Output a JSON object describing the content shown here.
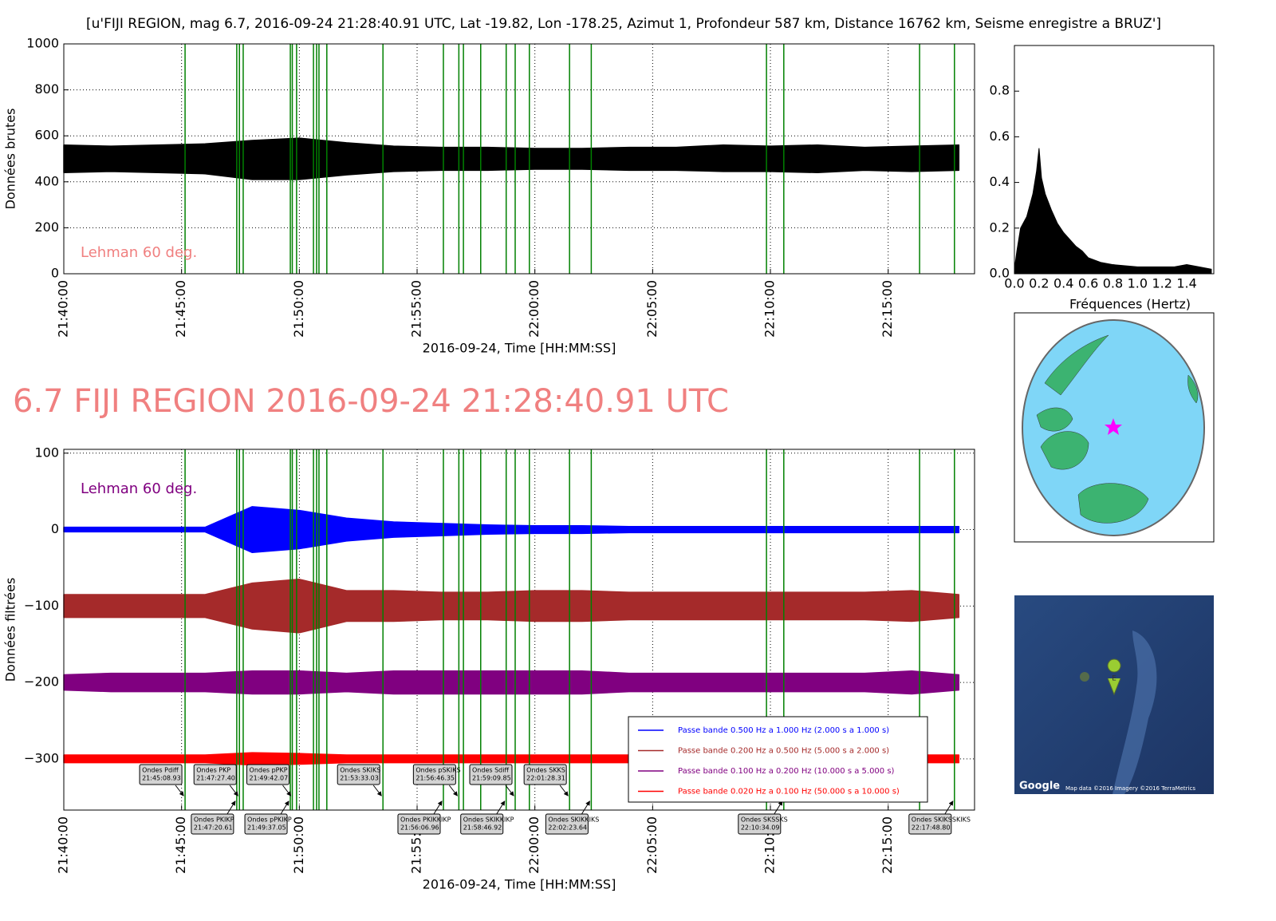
{
  "chart_data": [
    {
      "type": "band",
      "title": "[u'FIJI REGION, mag 6.7, 2016-09-24 21:28:40.91 UTC, Lat -19.82, Lon -178.25, Azimut   1, Profondeur 587 km, Distance 16762 km, Seisme enregistre a BRUZ']",
      "ylabel": "Données brutes",
      "xlabel": "2016-09-24, Time [HH:MM:SS]",
      "annotation": {
        "text": "Lehman 60 deg.",
        "color": "#f08080"
      },
      "x": [
        "21:40:00",
        "21:42:00",
        "21:44:00",
        "21:46:00",
        "21:48:00",
        "21:50:00",
        "21:52:00",
        "21:54:00",
        "21:56:00",
        "21:58:00",
        "22:00:00",
        "22:02:00",
        "22:04:00",
        "22:06:00",
        "22:08:00",
        "22:10:00",
        "22:12:00",
        "22:14:00",
        "22:16:00",
        "22:18:00"
      ],
      "series": [
        {
          "color": "#000000",
          "upper": [
            560,
            555,
            560,
            565,
            580,
            590,
            570,
            555,
            550,
            550,
            545,
            545,
            550,
            550,
            560,
            555,
            560,
            550,
            555,
            560
          ],
          "lower": [
            440,
            445,
            440,
            435,
            410,
            410,
            430,
            445,
            450,
            450,
            455,
            455,
            450,
            450,
            445,
            445,
            440,
            450,
            445,
            450
          ]
        }
      ],
      "xlim": [
        "21:40:00",
        "22:18:40"
      ],
      "xticks": [
        "21:40:00",
        "21:45:00",
        "21:50:00",
        "21:55:00",
        "22:00:00",
        "22:05:00",
        "22:10:00",
        "22:15:00"
      ],
      "ylim": [
        0,
        1000
      ],
      "yticks": [
        0,
        200,
        400,
        600,
        800,
        1000
      ],
      "grid": true
    },
    {
      "type": "area",
      "xlabel": "Fréquences (Hertz)",
      "x": [
        0,
        0.02,
        0.05,
        0.1,
        0.15,
        0.18,
        0.2,
        0.22,
        0.25,
        0.3,
        0.35,
        0.4,
        0.45,
        0.5,
        0.55,
        0.6,
        0.7,
        0.8,
        0.9,
        1.0,
        1.1,
        1.2,
        1.3,
        1.4,
        1.5,
        1.6
      ],
      "values": [
        0.02,
        0.1,
        0.2,
        0.25,
        0.35,
        0.45,
        0.55,
        0.42,
        0.35,
        0.28,
        0.22,
        0.18,
        0.15,
        0.12,
        0.1,
        0.07,
        0.05,
        0.04,
        0.035,
        0.03,
        0.03,
        0.03,
        0.03,
        0.04,
        0.03,
        0.02
      ],
      "color": "#000000",
      "xlim": [
        0,
        1.62
      ],
      "ylim": [
        0,
        1
      ],
      "xticks": [
        {
          "value": 0,
          "label": "0.0"
        },
        0.2,
        0.4,
        0.6,
        0.8,
        {
          "value": 1,
          "label": "1.0"
        },
        1.2,
        1.4
      ],
      "yticks": [
        {
          "value": 0,
          "label": "0.0"
        },
        0.2,
        0.4,
        0.6,
        0.8
      ],
      "grid": false
    },
    {
      "type": "band",
      "title": "6.7 FIJI REGION 2016-09-24 21:28:40.91 UTC",
      "title_color": "#f08080",
      "ylabel": "Données filtrées",
      "xlabel": "2016-09-24, Time [HH:MM:SS]",
      "annotation": {
        "text": "Lehman 60 deg.",
        "color": "#800080"
      },
      "x": [
        "21:40:00",
        "21:42:00",
        "21:44:00",
        "21:46:00",
        "21:48:00",
        "21:50:00",
        "21:52:00",
        "21:54:00",
        "21:56:00",
        "21:58:00",
        "22:00:00",
        "22:02:00",
        "22:04:00",
        "22:06:00",
        "22:08:00",
        "22:10:00",
        "22:12:00",
        "22:14:00",
        "22:16:00",
        "22:18:00"
      ],
      "series": [
        {
          "name": "Passe bande 0.500 Hz a 1.000 Hz (2.000 s a 1.000 s)",
          "color": "#0000ff",
          "upper": [
            3,
            3,
            3,
            3,
            30,
            25,
            15,
            10,
            8,
            6,
            5,
            5,
            4,
            4,
            4,
            4,
            4,
            4,
            4,
            4
          ],
          "lower": [
            -3,
            -3,
            -3,
            -3,
            -30,
            -25,
            -15,
            -10,
            -8,
            -6,
            -5,
            -5,
            -4,
            -4,
            -4,
            -4,
            -4,
            -4,
            -4,
            -4
          ]
        },
        {
          "name": "Passe bande 0.200 Hz a 0.500 Hz (5.000 s a 2.000 s)",
          "color": "#a52a2a",
          "upper": [
            -85,
            -85,
            -85,
            -85,
            -70,
            -65,
            -80,
            -80,
            -82,
            -82,
            -80,
            -80,
            -82,
            -82,
            -82,
            -82,
            -82,
            -82,
            -80,
            -85
          ],
          "lower": [
            -115,
            -115,
            -115,
            -115,
            -130,
            -135,
            -120,
            -120,
            -118,
            -118,
            -120,
            -120,
            -118,
            -118,
            -118,
            -118,
            -118,
            -118,
            -120,
            -115
          ]
        },
        {
          "name": "Passe bande 0.100 Hz a 0.200 Hz (10.000 s a 5.000 s)",
          "color": "#800080",
          "upper": [
            -190,
            -188,
            -188,
            -188,
            -185,
            -185,
            -188,
            -185,
            -185,
            -185,
            -185,
            -185,
            -188,
            -188,
            -188,
            -188,
            -188,
            -188,
            -185,
            -190
          ],
          "lower": [
            -210,
            -212,
            -212,
            -212,
            -215,
            -215,
            -212,
            -215,
            -215,
            -215,
            -215,
            -215,
            -212,
            -212,
            -212,
            -212,
            -212,
            -212,
            -215,
            -210
          ]
        },
        {
          "name": "Passe bande 0.020 Hz a 0.100 Hz (50.000 s a 10.000 s)",
          "color": "#ff0000",
          "upper": [
            -295,
            -295,
            -295,
            -295,
            -292,
            -293,
            -295,
            -295,
            -295,
            -295,
            -295,
            -295,
            -295,
            -295,
            -295,
            -295,
            -295,
            -295,
            -295,
            -295
          ],
          "lower": [
            -305,
            -305,
            -305,
            -305,
            -308,
            -307,
            -305,
            -305,
            -305,
            -305,
            -305,
            -305,
            -305,
            -305,
            -305,
            -305,
            -305,
            -305,
            -305,
            -305
          ]
        }
      ],
      "xlim": [
        "21:40:00",
        "22:18:40"
      ],
      "xticks": [
        "21:40:00",
        "21:45:00",
        "21:50:00",
        "21:55:00",
        "22:00:00",
        "22:05:00",
        "22:10:00",
        "22:15:00"
      ],
      "ylim": [
        -367,
        105
      ],
      "yticks": [
        100,
        0,
        {
          "value": -100,
          "label": "−100"
        },
        {
          "value": -200,
          "label": "−200"
        },
        {
          "value": -300,
          "label": "−300"
        }
      ],
      "grid": true,
      "legend": "lower right"
    }
  ],
  "arrivals": [
    {
      "name": "Ondes Pdiff",
      "time": "21:45:08.93"
    },
    {
      "name": "Ondes PKIKP",
      "time": "21:47:20.61"
    },
    {
      "name": "Ondes PKP",
      "time": "21:47:27.40"
    },
    {
      "name": "Ondes pPKIKP",
      "time": "21:49:37.05"
    },
    {
      "name": "Ondes pPKP",
      "time": "21:49:42.07"
    },
    {
      "name": "Ondes SKIKS",
      "time": "21:53:33.03"
    },
    {
      "name": "Ondes PKIKKIKP",
      "time": "21:56:06.96"
    },
    {
      "name": "Ondes pSKIKS",
      "time": "21:56:46.35"
    },
    {
      "name": "Ondes SKIKKIKP",
      "time": "21:58:46.92"
    },
    {
      "name": "Ondes Sdiff",
      "time": "21:59:09.85"
    },
    {
      "name": "Ondes SKKS",
      "time": "22:01:28.31"
    },
    {
      "name": "Ondes SKIKKIKS",
      "time": "22:02:23.64"
    },
    {
      "name": "Ondes SKSSKS",
      "time": "22:10:34.09"
    },
    {
      "name": "Ondes SKIKSSKIKS",
      "time": "22:17:48.80"
    }
  ],
  "other_arrivals": [
    "21:47:37",
    "21:49:53",
    "21:50:36",
    "21:50:44",
    "21:50:50",
    "21:51:10",
    "21:56:58",
    "21:57:42",
    "21:59:46",
    "22:09:50",
    "22:16:20"
  ],
  "map": {
    "logo": "Google",
    "attribution": "Map data ©2016  Imagery ©2016 TerraMetrics",
    "marker": "E"
  }
}
